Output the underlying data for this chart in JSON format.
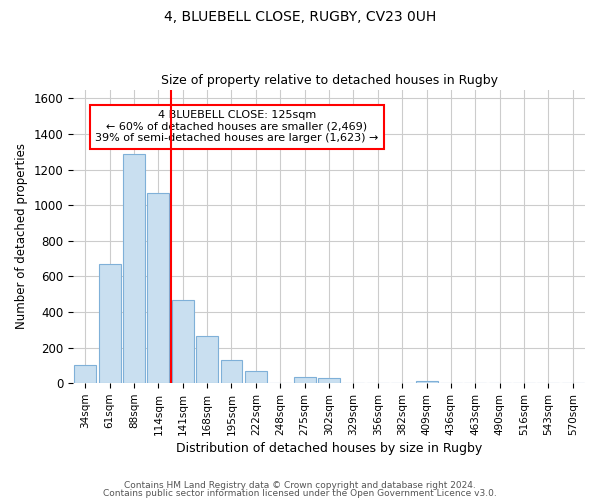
{
  "title_line1": "4, BLUEBELL CLOSE, RUGBY, CV23 0UH",
  "title_line2": "Size of property relative to detached houses in Rugby",
  "xlabel": "Distribution of detached houses by size in Rugby",
  "ylabel": "Number of detached properties",
  "bar_color": "#c9dff0",
  "bar_edge_color": "#7fb0d8",
  "grid_color": "#cccccc",
  "vline_color": "red",
  "annotation_text": "4 BLUEBELL CLOSE: 125sqm\n← 60% of detached houses are smaller (2,469)\n39% of semi-detached houses are larger (1,623) →",
  "categories": [
    "34sqm",
    "61sqm",
    "88sqm",
    "114sqm",
    "141sqm",
    "168sqm",
    "195sqm",
    "222sqm",
    "248sqm",
    "275sqm",
    "302sqm",
    "329sqm",
    "356sqm",
    "382sqm",
    "409sqm",
    "436sqm",
    "463sqm",
    "490sqm",
    "516sqm",
    "543sqm",
    "570sqm"
  ],
  "values": [
    100,
    670,
    1290,
    1070,
    470,
    265,
    130,
    70,
    0,
    35,
    30,
    0,
    0,
    0,
    15,
    0,
    0,
    0,
    0,
    0,
    0
  ],
  "ylim": [
    0,
    1650
  ],
  "yticks": [
    0,
    200,
    400,
    600,
    800,
    1000,
    1200,
    1400,
    1600
  ],
  "footer_line1": "Contains HM Land Registry data © Crown copyright and database right 2024.",
  "footer_line2": "Contains public sector information licensed under the Open Government Licence v3.0.",
  "background_color": "#ffffff",
  "plot_background_color": "#ffffff"
}
